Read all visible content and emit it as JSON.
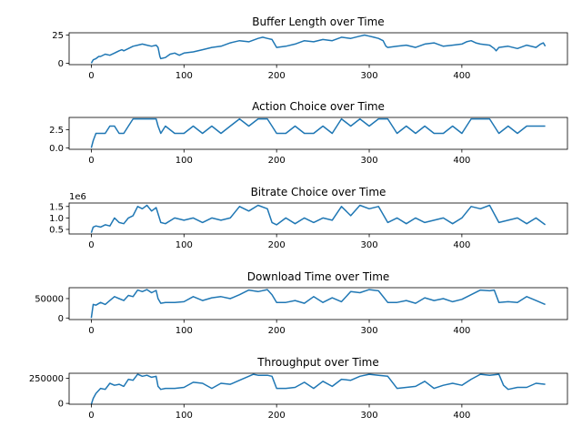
{
  "colors": {
    "line": "#1f77b4",
    "axes": "#000000",
    "background": "#ffffff"
  },
  "chart_data": [
    {
      "type": "line",
      "title": "Buffer Length over Time",
      "xlabel": "",
      "ylabel": "",
      "xlim": [
        -24,
        514
      ],
      "ylim": [
        -1.3,
        27
      ],
      "xticks": [
        0,
        100,
        200,
        300,
        400
      ],
      "xtick_labels": [
        "0",
        "100",
        "200",
        "300",
        "400"
      ],
      "yticks": [
        0,
        25
      ],
      "ytick_labels": [
        "0",
        "25"
      ],
      "offset_text": "",
      "grid": false,
      "legend": "none",
      "series": [
        {
          "x": [
            0,
            2,
            5,
            8,
            10,
            15,
            20,
            25,
            30,
            33,
            35,
            40,
            45,
            50,
            55,
            60,
            65,
            70,
            72,
            74,
            75,
            80,
            85,
            90,
            95,
            100,
            110,
            120,
            130,
            140,
            150,
            160,
            170,
            180,
            185,
            190,
            195,
            200,
            210,
            220,
            230,
            240,
            250,
            260,
            270,
            280,
            290,
            295,
            300,
            305,
            310,
            315,
            318,
            320,
            330,
            340,
            350,
            360,
            370,
            380,
            390,
            400,
            405,
            410,
            415,
            420,
            430,
            435,
            437,
            440,
            450,
            460,
            470,
            480,
            485,
            488,
            490
          ],
          "y": [
            0,
            3,
            4,
            6,
            6,
            8,
            7,
            9,
            11,
            12,
            11,
            13,
            15,
            16,
            17,
            16,
            15,
            16,
            14,
            6,
            4,
            5,
            8,
            9,
            7,
            9,
            10,
            12,
            14,
            15,
            18,
            20,
            19,
            22,
            23,
            22,
            21,
            14,
            15,
            17,
            20,
            19,
            21,
            20,
            23,
            22,
            24,
            25,
            24,
            23,
            22,
            20,
            15,
            14,
            15,
            16,
            14,
            17,
            18,
            15,
            16,
            17,
            19,
            20,
            18,
            17,
            16,
            13,
            11,
            14,
            15,
            13,
            16,
            14,
            17,
            18,
            15
          ]
        }
      ]
    },
    {
      "type": "line",
      "title": "Action Choice over Time",
      "xlabel": "",
      "ylabel": "",
      "xlim": [
        -24,
        514
      ],
      "ylim": [
        -0.2,
        4.2
      ],
      "xticks": [
        0,
        100,
        200,
        300,
        400
      ],
      "xtick_labels": [
        "0",
        "100",
        "200",
        "300",
        "400"
      ],
      "yticks": [
        0,
        2.5
      ],
      "ytick_labels": [
        "0.0",
        "2.5"
      ],
      "offset_text": "",
      "grid": false,
      "legend": "none",
      "series": [
        {
          "x": [
            0,
            2,
            5,
            10,
            15,
            20,
            25,
            30,
            35,
            40,
            45,
            50,
            60,
            70,
            72,
            75,
            80,
            90,
            100,
            110,
            120,
            130,
            140,
            150,
            160,
            170,
            180,
            190,
            195,
            200,
            210,
            220,
            230,
            240,
            250,
            260,
            270,
            280,
            290,
            300,
            310,
            320,
            330,
            340,
            350,
            360,
            370,
            380,
            390,
            400,
            410,
            420,
            430,
            440,
            450,
            460,
            470,
            480,
            490
          ],
          "y": [
            0,
            1,
            2,
            2,
            2,
            3,
            3,
            2,
            2,
            3,
            4,
            4,
            4,
            4,
            3,
            2,
            3,
            2,
            2,
            3,
            2,
            3,
            2,
            3,
            4,
            3,
            4,
            4,
            3,
            2,
            2,
            3,
            2,
            2,
            3,
            2,
            4,
            3,
            4,
            3,
            4,
            4,
            2,
            3,
            2,
            3,
            2,
            2,
            3,
            2,
            4,
            4,
            4,
            2,
            3,
            2,
            3,
            3,
            3
          ]
        }
      ]
    },
    {
      "type": "line",
      "title": "Bitrate Choice over Time",
      "xlabel": "",
      "ylabel": "",
      "xlim": [
        -24,
        514
      ],
      "ylim": [
        300000,
        1650000
      ],
      "xticks": [
        0,
        100,
        200,
        300,
        400
      ],
      "xtick_labels": [
        "0",
        "100",
        "200",
        "300",
        "400"
      ],
      "yticks": [
        500000,
        1000000,
        1500000
      ],
      "ytick_labels": [
        "0.5",
        "1.0",
        "1.5"
      ],
      "offset_text": "1e6",
      "grid": false,
      "legend": "none",
      "series": [
        {
          "x": [
            0,
            2,
            5,
            10,
            15,
            20,
            25,
            30,
            35,
            40,
            45,
            50,
            55,
            60,
            65,
            70,
            75,
            80,
            90,
            100,
            110,
            120,
            130,
            140,
            150,
            160,
            170,
            180,
            190,
            195,
            200,
            210,
            220,
            230,
            240,
            250,
            260,
            270,
            280,
            290,
            300,
            310,
            320,
            330,
            340,
            350,
            360,
            370,
            380,
            390,
            400,
            410,
            420,
            430,
            440,
            450,
            460,
            470,
            480,
            490
          ],
          "y": [
            350000,
            600000,
            650000,
            600000,
            700000,
            650000,
            1000000,
            800000,
            750000,
            1000000,
            1100000,
            1500000,
            1400000,
            1550000,
            1300000,
            1450000,
            800000,
            750000,
            1000000,
            900000,
            1000000,
            800000,
            1000000,
            900000,
            1000000,
            1500000,
            1300000,
            1550000,
            1400000,
            800000,
            700000,
            1000000,
            750000,
            1000000,
            800000,
            1000000,
            900000,
            1500000,
            1100000,
            1550000,
            1400000,
            1500000,
            800000,
            1000000,
            750000,
            1000000,
            800000,
            900000,
            1000000,
            750000,
            1000000,
            1500000,
            1400000,
            1550000,
            800000,
            900000,
            1000000,
            750000,
            1000000,
            700000
          ]
        }
      ]
    },
    {
      "type": "line",
      "title": "Download Time over Time",
      "xlabel": "",
      "ylabel": "",
      "xlim": [
        -24,
        514
      ],
      "ylim": [
        -4000,
        78000
      ],
      "xticks": [
        0,
        100,
        200,
        300,
        400
      ],
      "xtick_labels": [
        "0",
        "100",
        "200",
        "300",
        "400"
      ],
      "yticks": [
        0,
        50000
      ],
      "ytick_labels": [
        "0",
        "50000"
      ],
      "offset_text": "",
      "grid": false,
      "legend": "none",
      "series": [
        {
          "x": [
            0,
            2,
            5,
            10,
            15,
            20,
            25,
            30,
            35,
            40,
            45,
            50,
            55,
            60,
            65,
            70,
            72,
            75,
            80,
            90,
            100,
            110,
            120,
            130,
            140,
            150,
            160,
            170,
            180,
            190,
            195,
            200,
            210,
            220,
            230,
            240,
            250,
            260,
            270,
            280,
            290,
            300,
            310,
            320,
            330,
            340,
            350,
            360,
            370,
            380,
            390,
            400,
            410,
            420,
            430,
            435,
            440,
            450,
            460,
            470,
            480,
            490
          ],
          "y": [
            0,
            35000,
            33000,
            40000,
            35000,
            45000,
            55000,
            50000,
            45000,
            58000,
            55000,
            72000,
            68000,
            73000,
            65000,
            71000,
            50000,
            38000,
            40000,
            40000,
            42000,
            55000,
            45000,
            52000,
            55000,
            50000,
            60000,
            72000,
            68000,
            73000,
            60000,
            40000,
            40000,
            45000,
            38000,
            55000,
            40000,
            52000,
            42000,
            68000,
            65000,
            73000,
            70000,
            40000,
            40000,
            45000,
            38000,
            52000,
            45000,
            50000,
            42000,
            48000,
            60000,
            72000,
            70000,
            72000,
            40000,
            42000,
            40000,
            55000,
            45000,
            35000
          ]
        }
      ]
    },
    {
      "type": "line",
      "title": "Throughput over Time",
      "xlabel": "",
      "ylabel": "",
      "xlim": [
        -24,
        514
      ],
      "ylim": [
        -8000,
        300000
      ],
      "xticks": [
        0,
        100,
        200,
        300,
        400
      ],
      "xtick_labels": [
        "0",
        "100",
        "200",
        "300",
        "400"
      ],
      "yticks": [
        0,
        250000
      ],
      "ytick_labels": [
        "0",
        "250000"
      ],
      "offset_text": "",
      "grid": false,
      "legend": "none",
      "series": [
        {
          "x": [
            0,
            2,
            5,
            10,
            15,
            20,
            25,
            30,
            35,
            40,
            45,
            50,
            55,
            60,
            65,
            70,
            72,
            75,
            80,
            90,
            100,
            110,
            120,
            130,
            140,
            150,
            160,
            170,
            175,
            180,
            190,
            195,
            200,
            210,
            220,
            230,
            240,
            250,
            260,
            270,
            280,
            290,
            300,
            310,
            320,
            330,
            340,
            350,
            360,
            370,
            380,
            390,
            400,
            410,
            420,
            430,
            440,
            445,
            450,
            460,
            470,
            480,
            490
          ],
          "y": [
            -10000,
            50000,
            100000,
            150000,
            140000,
            200000,
            180000,
            190000,
            170000,
            240000,
            230000,
            290000,
            270000,
            280000,
            260000,
            270000,
            170000,
            140000,
            150000,
            150000,
            160000,
            210000,
            200000,
            150000,
            200000,
            190000,
            230000,
            270000,
            290000,
            280000,
            280000,
            270000,
            150000,
            150000,
            160000,
            210000,
            150000,
            220000,
            170000,
            240000,
            230000,
            270000,
            290000,
            280000,
            270000,
            150000,
            160000,
            170000,
            220000,
            150000,
            180000,
            200000,
            180000,
            240000,
            290000,
            280000,
            290000,
            180000,
            140000,
            160000,
            160000,
            200000,
            190000
          ]
        }
      ]
    }
  ]
}
